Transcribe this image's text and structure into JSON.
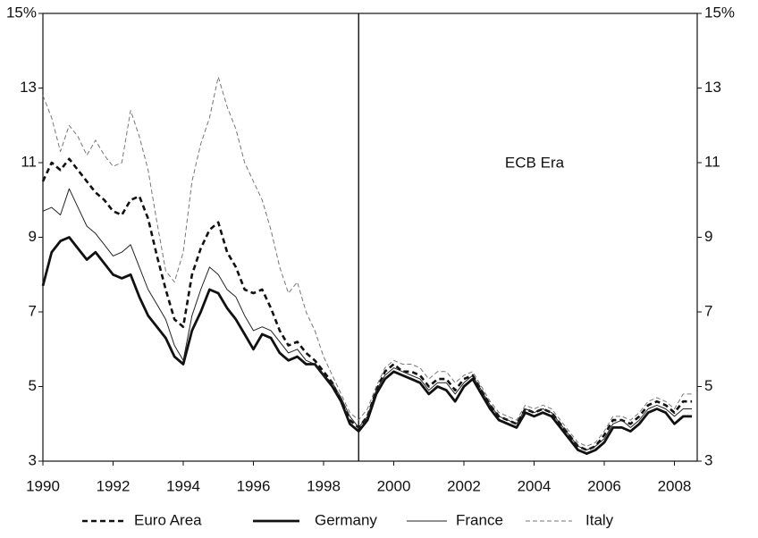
{
  "chart_data": {
    "type": "line",
    "annotation": "ECB Era",
    "vline": 1999,
    "xlim": [
      1990,
      2008.65
    ],
    "xticks": [
      1990,
      1992,
      1994,
      1996,
      1998,
      2000,
      2002,
      2004,
      2006,
      2008
    ],
    "ylim": [
      3,
      15
    ],
    "yticks": [
      3,
      5,
      7,
      9,
      11,
      13,
      {
        "value": 15,
        "label": "15%"
      }
    ],
    "y2lim": [
      3,
      15
    ],
    "y2ticks": [
      3,
      5,
      7,
      9,
      11,
      13,
      {
        "value": 15,
        "label": "15%"
      }
    ],
    "grid": false,
    "legend": "bottom",
    "x": [
      1990,
      1990.25,
      1990.5,
      1990.75,
      1991,
      1991.25,
      1991.5,
      1991.75,
      1992,
      1992.25,
      1992.5,
      1992.75,
      1993,
      1993.25,
      1993.5,
      1993.75,
      1994,
      1994.25,
      1994.5,
      1994.75,
      1995,
      1995.25,
      1995.5,
      1995.75,
      1996,
      1996.25,
      1996.5,
      1996.75,
      1997,
      1997.25,
      1997.5,
      1997.75,
      1998,
      1998.25,
      1998.5,
      1998.75,
      1999,
      1999.25,
      1999.5,
      1999.75,
      2000,
      2000.25,
      2000.5,
      2000.75,
      2001,
      2001.25,
      2001.5,
      2001.75,
      2002,
      2002.25,
      2002.5,
      2002.75,
      2003,
      2003.25,
      2003.5,
      2003.75,
      2004,
      2004.25,
      2004.5,
      2004.75,
      2005,
      2005.25,
      2005.5,
      2005.75,
      2006,
      2006.25,
      2006.5,
      2006.75,
      2007,
      2007.25,
      2007.5,
      2007.75,
      2008,
      2008.25,
      2008.5
    ],
    "series": [
      {
        "name": "Euro Area",
        "color": "#111111",
        "width": 2.6,
        "dash": "6,4",
        "values": [
          10.5,
          11.0,
          10.8,
          11.1,
          10.8,
          10.5,
          10.2,
          10.0,
          9.7,
          9.6,
          10.0,
          10.1,
          9.5,
          8.5,
          7.6,
          6.8,
          6.6,
          8.0,
          8.7,
          9.2,
          9.4,
          8.6,
          8.2,
          7.6,
          7.5,
          7.6,
          7.1,
          6.5,
          6.1,
          6.2,
          5.9,
          5.7,
          5.4,
          5.1,
          4.6,
          4.1,
          3.9,
          4.2,
          4.9,
          5.4,
          5.6,
          5.4,
          5.4,
          5.3,
          5.0,
          5.2,
          5.2,
          4.9,
          5.2,
          5.3,
          4.9,
          4.5,
          4.2,
          4.1,
          4.0,
          4.4,
          4.3,
          4.4,
          4.3,
          4.0,
          3.7,
          3.4,
          3.3,
          3.4,
          3.7,
          4.1,
          4.1,
          4.0,
          4.2,
          4.5,
          4.6,
          4.5,
          4.3,
          4.6,
          4.6
        ]
      },
      {
        "name": "Germany",
        "color": "#111111",
        "width": 2.8,
        "dash": "none",
        "values": [
          7.7,
          8.6,
          8.9,
          9.0,
          8.7,
          8.4,
          8.6,
          8.3,
          8.0,
          7.9,
          8.0,
          7.4,
          6.9,
          6.6,
          6.3,
          5.8,
          5.6,
          6.5,
          7.0,
          7.6,
          7.5,
          7.1,
          6.8,
          6.4,
          6.0,
          6.4,
          6.3,
          5.9,
          5.7,
          5.8,
          5.6,
          5.6,
          5.3,
          5.0,
          4.6,
          4.0,
          3.8,
          4.1,
          4.8,
          5.2,
          5.4,
          5.3,
          5.2,
          5.1,
          4.8,
          5.0,
          4.9,
          4.6,
          5.0,
          5.2,
          4.8,
          4.4,
          4.1,
          4.0,
          3.9,
          4.3,
          4.2,
          4.3,
          4.2,
          3.9,
          3.6,
          3.3,
          3.2,
          3.3,
          3.5,
          3.9,
          3.9,
          3.8,
          4.0,
          4.3,
          4.4,
          4.3,
          4.0,
          4.2,
          4.2
        ]
      },
      {
        "name": "France",
        "color": "#222222",
        "width": 1,
        "dash": "none",
        "values": [
          9.7,
          9.8,
          9.6,
          10.3,
          9.8,
          9.3,
          9.1,
          8.8,
          8.5,
          8.6,
          8.8,
          8.2,
          7.6,
          7.2,
          6.8,
          6.1,
          5.7,
          6.9,
          7.6,
          8.2,
          8.0,
          7.6,
          7.4,
          6.9,
          6.5,
          6.6,
          6.5,
          6.2,
          5.9,
          6.0,
          5.7,
          5.6,
          5.3,
          5.1,
          4.7,
          4.2,
          3.9,
          4.2,
          4.9,
          5.3,
          5.5,
          5.4,
          5.3,
          5.2,
          4.9,
          5.1,
          5.1,
          4.8,
          5.1,
          5.3,
          4.9,
          4.5,
          4.2,
          4.1,
          4.0,
          4.4,
          4.3,
          4.4,
          4.3,
          4.0,
          3.7,
          3.4,
          3.3,
          3.4,
          3.6,
          4.0,
          4.1,
          3.9,
          4.1,
          4.4,
          4.5,
          4.4,
          4.2,
          4.4,
          4.4
        ]
      },
      {
        "name": "Italy",
        "color": "#777777",
        "width": 1,
        "dash": "5,3",
        "values": [
          12.8,
          12.2,
          11.3,
          12.0,
          11.7,
          11.2,
          11.6,
          11.2,
          10.9,
          11.0,
          12.4,
          11.7,
          10.8,
          9.4,
          8.1,
          7.8,
          8.6,
          10.5,
          11.5,
          12.2,
          13.3,
          12.5,
          11.9,
          11.0,
          10.5,
          10.0,
          9.2,
          8.2,
          7.5,
          7.8,
          7.0,
          6.5,
          5.8,
          5.3,
          4.8,
          4.3,
          4.1,
          4.4,
          5.0,
          5.5,
          5.7,
          5.6,
          5.6,
          5.5,
          5.2,
          5.4,
          5.4,
          5.1,
          5.3,
          5.4,
          5.0,
          4.6,
          4.3,
          4.2,
          4.1,
          4.5,
          4.4,
          4.5,
          4.4,
          4.1,
          3.8,
          3.5,
          3.4,
          3.5,
          3.8,
          4.2,
          4.2,
          4.1,
          4.3,
          4.6,
          4.7,
          4.6,
          4.4,
          4.8,
          4.8
        ]
      }
    ]
  }
}
